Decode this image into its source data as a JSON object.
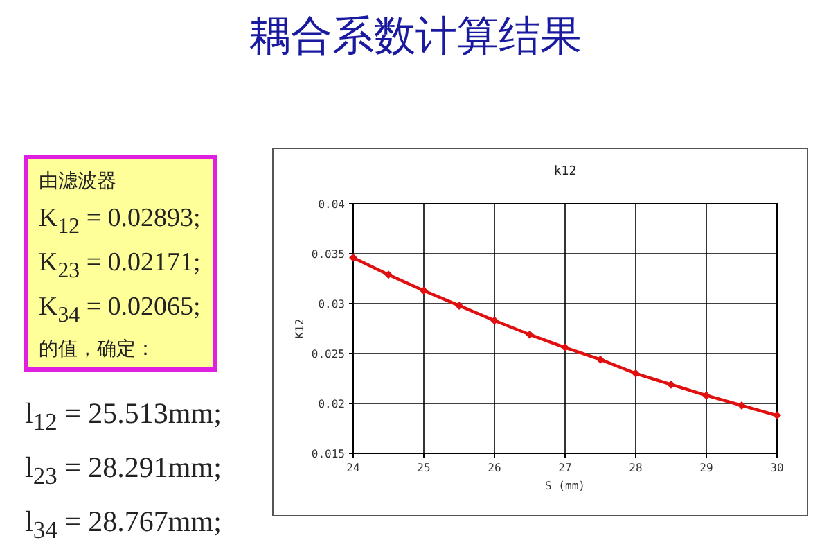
{
  "chart_data": {
    "type": "line",
    "title": "耦合系数计算结果",
    "subtitle": "k12",
    "xlabel": "S (mm)",
    "ylabel": "K12",
    "x": [
      24,
      24.5,
      25,
      25.5,
      26,
      26.5,
      27,
      27.5,
      28,
      28.5,
      29,
      29.5,
      30
    ],
    "series": [
      {
        "color": "#e01010",
        "values": [
          0.0346,
          0.0329,
          0.0313,
          0.0298,
          0.0283,
          0.0269,
          0.0256,
          0.0244,
          0.023,
          0.0219,
          0.0208,
          0.0198,
          0.0188
        ]
      }
    ],
    "xlim": [
      24,
      30
    ],
    "xticks": [
      24,
      25,
      26,
      27,
      28,
      29,
      30
    ],
    "ylim": [
      0.015,
      0.04
    ],
    "yticks": [
      {
        "value": 0.015,
        "label": "0.015"
      },
      {
        "value": 0.02,
        "label": "0.02"
      },
      {
        "value": 0.025,
        "label": "0.025"
      },
      {
        "value": 0.03,
        "label": "0.03"
      },
      {
        "value": 0.035,
        "label": "0.035"
      },
      {
        "value": 0.04,
        "label": "0.04"
      }
    ],
    "grid": true,
    "marker": "diamond",
    "line_style": "solid",
    "annotations": [
      "由滤波器",
      "K$_{12}$ = 0.02893;",
      "K$_{23}$ = 0.02171;",
      "K$_{34}$ = 0.02065;",
      "的值，确定：",
      "l$_{12}$ = 25.513mm;",
      "l$_{23}$ = 28.291mm;",
      "l$_{34}$ = 28.767mm;"
    ]
  }
}
